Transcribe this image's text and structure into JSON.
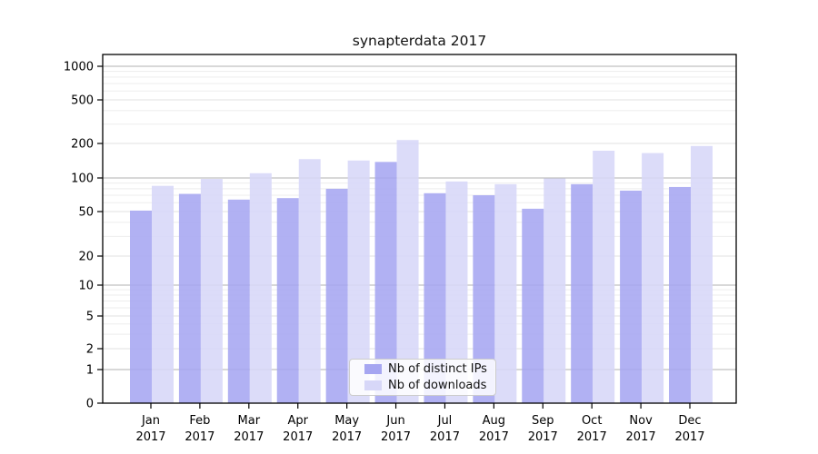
{
  "chart_data": {
    "type": "bar",
    "title": "synapterdata 2017",
    "categories": [
      "Jan",
      "Feb",
      "Mar",
      "Apr",
      "May",
      "Jun",
      "Jul",
      "Aug",
      "Sep",
      "Oct",
      "Nov",
      "Dec"
    ],
    "xtick_year": "2017",
    "series": [
      {
        "name": "Nb of distinct IPs",
        "color": "#a6a6f1",
        "values": [
          51,
          72,
          64,
          66,
          80,
          138,
          73,
          70,
          53,
          88,
          77,
          83
        ]
      },
      {
        "name": "Nb of downloads",
        "color": "#d7d7f8",
        "values": [
          85,
          98,
          110,
          146,
          142,
          215,
          93,
          88,
          99,
          173,
          165,
          190
        ]
      }
    ],
    "yscale": "symlog",
    "y_ticks": [
      0,
      1,
      2,
      5,
      10,
      20,
      50,
      100,
      200,
      500,
      1000
    ],
    "ylim": [
      0,
      1275
    ],
    "grid": true,
    "legend": {
      "position": "lower center",
      "labels": [
        "Nb of distinct IPs",
        "Nb of downloads"
      ]
    }
  },
  "colors": {
    "major_grid": "#b2b2b2",
    "mid_grid": "#e2e2e2",
    "minor_grid": "#ededed",
    "axis": "#000000"
  }
}
